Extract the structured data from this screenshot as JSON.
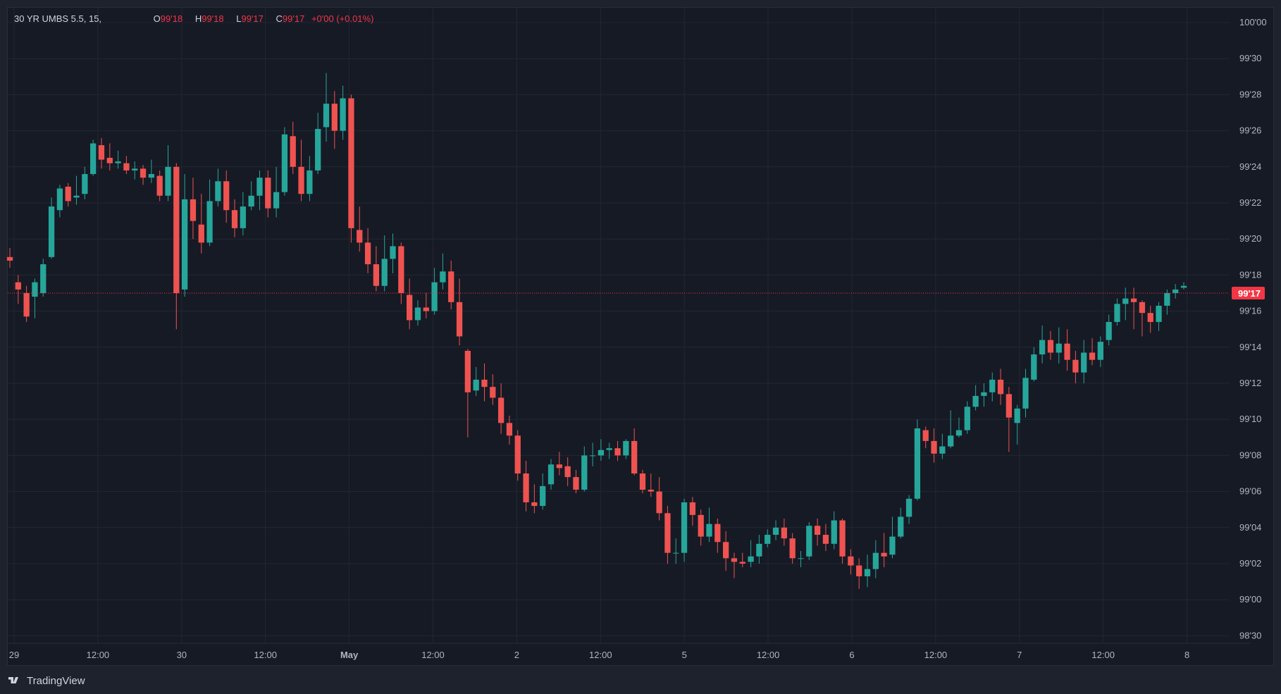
{
  "legend": {
    "symbol": "30 YR UMBS 5.5, 15,",
    "open_label": "O",
    "open": "99'18",
    "high_label": "H",
    "high": "99'18",
    "low_label": "L",
    "low": "99'17",
    "close_label": "C",
    "close": "99'17",
    "change": "+0'00 (+0.01%)"
  },
  "branding": {
    "name": "TradingView",
    "logo_icon": "tradingview-logo-icon"
  },
  "colors": {
    "up": "#26a69a",
    "down": "#ef5350",
    "background": "#161a25",
    "grid": "#232733",
    "axis_text": "#b2b5be",
    "last_price": "#f23645"
  },
  "chart_data": {
    "type": "candlestick",
    "title": "30 YR UMBS 5.5, 15,",
    "y_tick_labels": [
      "100'00",
      "99'30",
      "99'28",
      "99'26",
      "99'24",
      "99'22",
      "99'20",
      "99'18",
      "99'16",
      "99'14",
      "99'12",
      "99'10",
      "99'08",
      "99'06",
      "99'04",
      "99'02",
      "99'00",
      "98'30"
    ],
    "y_tick_values": [
      100.0,
      99.9375,
      99.875,
      99.8125,
      99.75,
      99.6875,
      99.625,
      99.5625,
      99.5,
      99.4375,
      99.375,
      99.3125,
      99.25,
      99.1875,
      99.125,
      99.0625,
      99.0,
      98.9375
    ],
    "x_tick_labels": [
      "29",
      "12:00",
      "30",
      "12:00",
      "May",
      "12:00",
      "2",
      "12:00",
      "5",
      "12:00",
      "6",
      "12:00",
      "7",
      "12:00",
      "8"
    ],
    "last_price": 99.5313,
    "last_price_label": "99'17",
    "grid": true,
    "ohlc_sampled_32nds": [
      [
        19.0,
        18.8,
        18.4,
        19.5
      ],
      [
        17.6,
        17.2,
        16.4,
        18.0
      ],
      [
        17.0,
        15.7,
        15.4,
        17.4
      ],
      [
        16.8,
        17.6,
        15.6,
        17.8
      ],
      [
        17.0,
        18.6,
        16.8,
        18.9
      ],
      [
        19.0,
        21.8,
        18.9,
        22.3
      ],
      [
        21.6,
        22.8,
        21.2,
        23.0
      ],
      [
        22.9,
        22.1,
        21.8,
        23.1
      ],
      [
        22.3,
        22.4,
        21.9,
        23.5
      ],
      [
        22.5,
        23.6,
        22.2,
        24.0
      ],
      [
        23.6,
        25.3,
        23.5,
        25.5
      ],
      [
        25.2,
        24.4,
        23.9,
        25.6
      ],
      [
        24.5,
        24.2,
        23.8,
        25.3
      ],
      [
        24.2,
        24.3,
        23.9,
        24.9
      ],
      [
        24.2,
        23.8,
        23.6,
        24.6
      ],
      [
        23.8,
        23.9,
        23.3,
        24.3
      ],
      [
        23.9,
        23.4,
        23.0,
        24.1
      ],
      [
        23.4,
        23.6,
        23.1,
        24.4
      ],
      [
        23.5,
        22.4,
        22.1,
        23.8
      ],
      [
        22.4,
        24.0,
        22.1,
        25.2
      ],
      [
        24.0,
        17.0,
        15.0,
        24.2
      ],
      [
        17.2,
        22.2,
        16.8,
        23.6
      ],
      [
        22.2,
        21.0,
        20.0,
        23.4
      ],
      [
        20.8,
        19.8,
        19.2,
        22.5
      ],
      [
        19.8,
        22.1,
        19.6,
        23.3
      ],
      [
        22.1,
        23.2,
        21.8,
        23.9
      ],
      [
        23.2,
        21.6,
        20.9,
        23.8
      ],
      [
        21.6,
        20.6,
        20.1,
        22.2
      ],
      [
        20.6,
        21.8,
        20.2,
        22.6
      ],
      [
        21.8,
        22.4,
        21.6,
        23.2
      ],
      [
        22.4,
        23.4,
        21.6,
        23.8
      ],
      [
        23.4,
        21.7,
        21.2,
        23.8
      ],
      [
        21.7,
        22.6,
        21.2,
        24.0
      ],
      [
        22.6,
        25.8,
        22.4,
        26.2
      ],
      [
        25.7,
        24.0,
        23.6,
        26.5
      ],
      [
        24.0,
        22.5,
        22.1,
        25.5
      ],
      [
        22.5,
        23.8,
        22.1,
        24.6
      ],
      [
        23.8,
        26.1,
        23.6,
        27.0
      ],
      [
        26.2,
        27.5,
        25.4,
        29.2
      ],
      [
        27.5,
        26.0,
        25.0,
        28.2
      ],
      [
        26.0,
        27.8,
        25.5,
        28.5
      ],
      [
        27.8,
        20.6,
        19.8,
        28.0
      ],
      [
        20.5,
        19.8,
        19.3,
        21.8
      ],
      [
        19.8,
        18.6,
        18.1,
        20.6
      ],
      [
        18.6,
        17.4,
        17.1,
        19.6
      ],
      [
        17.4,
        18.9,
        17.1,
        20.2
      ],
      [
        18.9,
        19.6,
        18.1,
        20.3
      ],
      [
        19.6,
        17.0,
        16.4,
        19.8
      ],
      [
        16.9,
        15.5,
        15.0,
        17.8
      ],
      [
        15.5,
        16.2,
        15.2,
        16.6
      ],
      [
        16.2,
        16.0,
        15.6,
        17.0
      ],
      [
        16.0,
        17.6,
        15.8,
        18.4
      ],
      [
        17.6,
        18.2,
        17.2,
        19.2
      ],
      [
        18.2,
        16.5,
        16.1,
        18.8
      ],
      [
        16.5,
        14.6,
        14.1,
        17.8
      ],
      [
        13.8,
        11.5,
        9.0,
        13.9
      ],
      [
        11.6,
        12.2,
        11.3,
        12.9
      ],
      [
        12.2,
        11.8,
        11.0,
        13.1
      ],
      [
        11.8,
        11.2,
        10.8,
        12.5
      ],
      [
        11.2,
        9.8,
        9.2,
        12.0
      ],
      [
        9.8,
        9.1,
        8.6,
        10.2
      ],
      [
        9.1,
        7.0,
        6.6,
        9.4
      ],
      [
        7.0,
        5.4,
        4.9,
        7.7
      ],
      [
        5.4,
        5.2,
        4.8,
        6.4
      ],
      [
        5.2,
        6.3,
        5.0,
        7.0
      ],
      [
        6.4,
        7.5,
        6.1,
        7.8
      ],
      [
        7.5,
        7.3,
        6.9,
        8.2
      ],
      [
        7.4,
        6.8,
        6.3,
        7.9
      ],
      [
        6.8,
        6.1,
        5.9,
        7.2
      ],
      [
        6.1,
        8.0,
        6.0,
        8.5
      ],
      [
        8.0,
        8.0,
        7.4,
        8.7
      ],
      [
        8.0,
        8.3,
        7.7,
        8.9
      ],
      [
        8.3,
        8.4,
        7.8,
        8.7
      ],
      [
        8.4,
        8.0,
        7.7,
        8.8
      ],
      [
        8.0,
        8.8,
        7.8,
        8.9
      ],
      [
        8.8,
        7.0,
        6.9,
        9.5
      ],
      [
        7.0,
        6.1,
        5.9,
        7.2
      ],
      [
        6.1,
        6.0,
        5.7,
        7.0
      ],
      [
        6.0,
        4.8,
        4.4,
        6.8
      ],
      [
        4.8,
        2.6,
        2.0,
        5.2
      ],
      [
        2.6,
        2.6,
        2.0,
        3.4
      ],
      [
        2.6,
        5.4,
        2.1,
        5.6
      ],
      [
        5.4,
        4.7,
        4.1,
        5.7
      ],
      [
        4.7,
        3.5,
        3.0,
        5.0
      ],
      [
        3.5,
        4.2,
        3.2,
        5.1
      ],
      [
        4.2,
        3.2,
        2.6,
        4.5
      ],
      [
        3.2,
        2.3,
        1.6,
        3.8
      ],
      [
        2.3,
        2.1,
        1.2,
        2.6
      ],
      [
        2.1,
        2.0,
        1.8,
        2.6
      ],
      [
        2.1,
        2.4,
        1.8,
        3.3
      ],
      [
        2.4,
        3.1,
        2.0,
        3.6
      ],
      [
        3.1,
        3.6,
        2.9,
        3.9
      ],
      [
        3.6,
        4.0,
        3.3,
        4.4
      ],
      [
        4.0,
        3.4,
        3.0,
        4.5
      ],
      [
        3.4,
        2.3,
        2.0,
        3.7
      ],
      [
        2.3,
        2.3,
        1.8,
        2.7
      ],
      [
        2.4,
        4.1,
        2.2,
        4.3
      ],
      [
        4.1,
        3.6,
        3.0,
        4.5
      ],
      [
        3.6,
        3.1,
        2.7,
        4.2
      ],
      [
        3.1,
        4.4,
        2.8,
        4.9
      ],
      [
        4.4,
        2.4,
        2.0,
        4.5
      ],
      [
        2.4,
        1.9,
        1.4,
        2.8
      ],
      [
        1.9,
        1.3,
        0.6,
        2.3
      ],
      [
        1.3,
        1.7,
        0.7,
        2.5
      ],
      [
        1.7,
        2.6,
        1.2,
        3.3
      ],
      [
        2.6,
        2.4,
        1.8,
        3.7
      ],
      [
        2.5,
        3.5,
        2.3,
        4.6
      ],
      [
        3.5,
        4.6,
        3.4,
        5.1
      ],
      [
        4.6,
        5.6,
        4.2,
        5.8
      ],
      [
        5.6,
        9.5,
        5.5,
        10.0
      ],
      [
        9.4,
        8.8,
        8.4,
        9.6
      ],
      [
        8.8,
        8.1,
        7.6,
        9.5
      ],
      [
        8.1,
        8.5,
        7.8,
        9.2
      ],
      [
        8.5,
        9.1,
        8.4,
        10.5
      ],
      [
        9.1,
        9.4,
        9.0,
        10.1
      ],
      [
        9.4,
        10.7,
        9.2,
        11.0
      ],
      [
        10.7,
        11.3,
        10.5,
        11.9
      ],
      [
        11.3,
        11.5,
        10.7,
        12.0
      ],
      [
        11.5,
        12.2,
        11.0,
        12.6
      ],
      [
        12.2,
        11.4,
        10.8,
        12.8
      ],
      [
        11.4,
        10.1,
        8.2,
        11.8
      ],
      [
        9.8,
        10.6,
        8.6,
        10.8
      ],
      [
        10.6,
        12.3,
        10.1,
        12.8
      ],
      [
        12.2,
        13.6,
        12.1,
        14.0
      ],
      [
        13.6,
        14.4,
        13.1,
        15.2
      ],
      [
        14.4,
        13.7,
        13.3,
        14.9
      ],
      [
        13.7,
        14.2,
        13.1,
        15.1
      ],
      [
        14.2,
        13.3,
        12.7,
        15.0
      ],
      [
        13.3,
        12.6,
        12.0,
        13.8
      ],
      [
        12.6,
        13.7,
        12.0,
        14.4
      ],
      [
        13.7,
        13.3,
        13.0,
        14.5
      ],
      [
        13.3,
        14.3,
        12.9,
        14.6
      ],
      [
        14.4,
        15.4,
        14.1,
        15.8
      ],
      [
        15.4,
        16.4,
        15.2,
        16.7
      ],
      [
        16.4,
        16.7,
        15.5,
        17.3
      ],
      [
        16.7,
        16.5,
        15.0,
        17.3
      ],
      [
        16.5,
        15.9,
        14.6,
        16.6
      ],
      [
        15.9,
        15.4,
        14.8,
        16.3
      ],
      [
        15.4,
        16.3,
        14.9,
        16.5
      ],
      [
        16.3,
        17.0,
        15.8,
        17.2
      ],
      [
        17.0,
        17.2,
        16.7,
        17.5
      ],
      [
        17.3,
        17.4,
        17.2,
        17.6
      ]
    ]
  }
}
